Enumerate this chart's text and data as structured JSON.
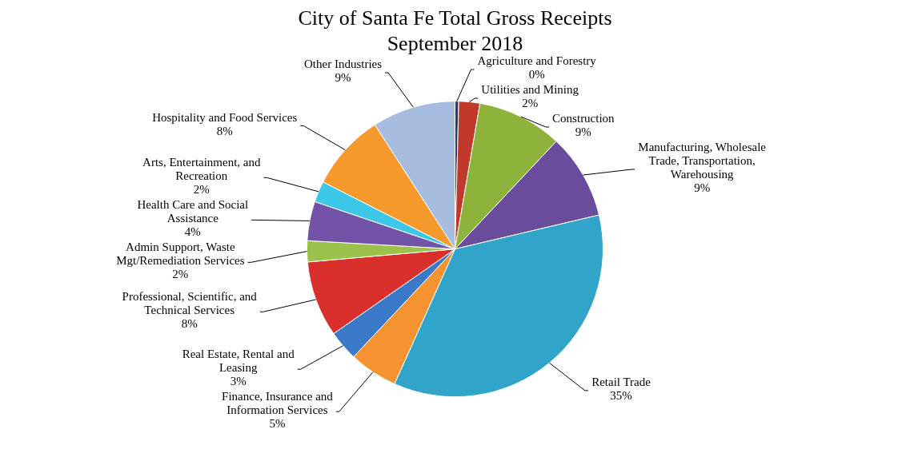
{
  "chart_data": {
    "type": "pie",
    "title": "City of Santa Fe Total Gross Receipts",
    "subtitle": "September 2018",
    "categories": [
      "Agriculture and Forestry",
      "Utilities and Mining",
      "Construction",
      "Manufacturing, Wholesale Trade, Transportation, Warehousing",
      "Retail Trade",
      "Finance, Insurance and Information Services",
      "Real Estate, Rental and Leasing",
      "Professional, Scientific, and Technical Services",
      "Admin Support, Waste Mgt/Remediation Services",
      "Health Care and Social Assistance",
      "Arts, Entertainment, and Recreation",
      "Hospitality and Food Services",
      "Other Industries"
    ],
    "values": [
      0.4,
      2.3,
      9.3,
      9.3,
      35.4,
      5.3,
      3.3,
      8.3,
      2.3,
      4.3,
      2.3,
      8.4,
      9.1
    ],
    "value_labels": [
      "0%",
      "2%",
      "9%",
      "9%",
      "35%",
      "5%",
      "3%",
      "8%",
      "2%",
      "4%",
      "2%",
      "8%",
      "9%"
    ],
    "colors": [
      "#1f3b73",
      "#c0392b",
      "#8db33a",
      "#6a4c9c",
      "#31a5c9",
      "#f59331",
      "#3a78c8",
      "#d9302c",
      "#9bc24a",
      "#7353a8",
      "#3cc7e8",
      "#f79a2e",
      "#a6bde0"
    ],
    "legend": false
  }
}
